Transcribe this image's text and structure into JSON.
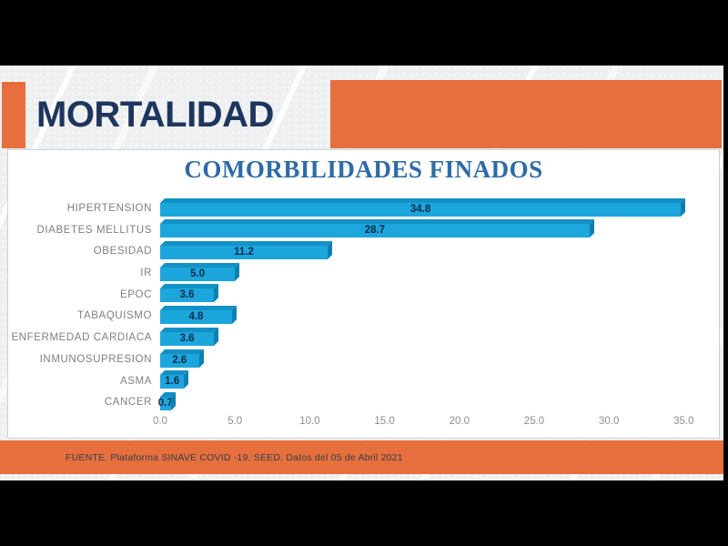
{
  "header": {
    "title": "MORTALIDAD"
  },
  "chart_data": {
    "type": "bar",
    "orientation": "horizontal",
    "title": "COMORBILIDADES FINADOS",
    "categories": [
      "HIPERTENSION",
      "DIABETES MELLITUS",
      "OBESIDAD",
      "IR",
      "EPOC",
      "TABAQUISMO",
      "ENFERMEDAD CARDIACA",
      "INMUNOSUPRESION",
      "ASMA",
      "CANCER"
    ],
    "values": [
      34.8,
      28.7,
      11.2,
      5.0,
      3.6,
      4.8,
      3.6,
      2.6,
      1.6,
      0.7
    ],
    "value_labels": [
      "34.8",
      "28.7",
      "11.2",
      "5.0",
      "3.6",
      "4.8",
      "3.6",
      "2.6",
      "1.6",
      "0.7"
    ],
    "xlabel": "",
    "ylabel": "",
    "xlim": [
      0,
      36.5
    ],
    "x_ticks": [
      "0.0",
      "5.0",
      "10.0",
      "15.0",
      "20.0",
      "25.0",
      "30.0",
      "35.0"
    ],
    "grid": false,
    "legend": false,
    "style": "3d-horizontal-bars"
  },
  "footer": {
    "source": "FUENTE. Plataforma SINAVE COVID -19, SEED. Datos del 05 de Abril 2021"
  },
  "colors": {
    "accent_orange": "#E76F3D",
    "slide_title": "#1E355E",
    "chart_title": "#2E6BA6",
    "bar_fill": "#1CA6DC",
    "bar_top": "#1191C5",
    "bar_side": "#0E7FB0",
    "value_label": "#13294B"
  }
}
